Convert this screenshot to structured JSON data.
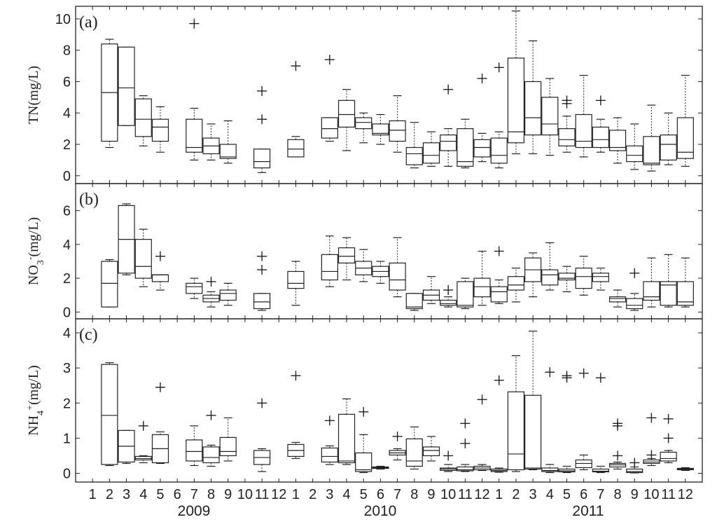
{
  "chart_data": [
    {
      "panel_label": "(a)",
      "type": "box",
      "ylabel_main": "TN",
      "ylabel_unit": "(mg/L)",
      "ylim": [
        -0.5,
        10.8
      ],
      "yticks": [
        0,
        2,
        4,
        6,
        8,
        10
      ],
      "boxes": [
        {
          "month": 2,
          "min": 1.8,
          "q1": 2.2,
          "median": 5.3,
          "q3": 8.4,
          "max": 8.7,
          "outliers": []
        },
        {
          "month": 3,
          "min": 3.2,
          "q1": 3.2,
          "median": 5.6,
          "q3": 8.2,
          "max": 8.2,
          "outliers": []
        },
        {
          "month": 4,
          "min": 1.9,
          "q1": 2.5,
          "median": 3.6,
          "q3": 4.9,
          "max": 5.1,
          "outliers": []
        },
        {
          "month": 5,
          "min": 1.5,
          "q1": 2.2,
          "median": 3.1,
          "q3": 3.6,
          "max": 4.4,
          "outliers": []
        },
        {
          "month": 7,
          "min": 1.0,
          "q1": 1.5,
          "median": 1.8,
          "q3": 3.6,
          "max": 4.3,
          "outliers": [
            9.7
          ]
        },
        {
          "month": 8,
          "min": 1.0,
          "q1": 1.4,
          "median": 1.9,
          "q3": 2.4,
          "max": 3.3,
          "outliers": []
        },
        {
          "month": 9,
          "min": 0.8,
          "q1": 1.1,
          "median": 1.2,
          "q3": 2.0,
          "max": 3.5,
          "outliers": []
        },
        {
          "month": 11,
          "min": 0.2,
          "q1": 0.5,
          "median": 0.9,
          "q3": 1.7,
          "max": 1.7,
          "outliers": [
            3.6,
            5.4
          ]
        },
        {
          "month": 13,
          "min": 1.2,
          "q1": 1.2,
          "median": 1.7,
          "q3": 2.3,
          "max": 2.5,
          "outliers": [
            7.0
          ]
        },
        {
          "month": 15,
          "min": 2.2,
          "q1": 2.4,
          "median": 3.0,
          "q3": 3.7,
          "max": 3.7,
          "outliers": [
            7.4
          ]
        },
        {
          "month": 16,
          "min": 1.6,
          "q1": 3.1,
          "median": 3.9,
          "q3": 4.8,
          "max": 5.5,
          "outliers": []
        },
        {
          "month": 17,
          "min": 2.1,
          "q1": 3.0,
          "median": 3.4,
          "q3": 3.7,
          "max": 4.0,
          "outliers": []
        },
        {
          "month": 18,
          "min": 2.0,
          "q1": 2.6,
          "median": 2.7,
          "q3": 3.3,
          "max": 3.9,
          "outliers": []
        },
        {
          "month": 19,
          "min": 1.5,
          "q1": 2.2,
          "median": 2.9,
          "q3": 3.5,
          "max": 5.1,
          "outliers": []
        },
        {
          "month": 20,
          "min": 0.5,
          "q1": 0.7,
          "median": 1.4,
          "q3": 1.8,
          "max": 3.4,
          "outliers": []
        },
        {
          "month": 21,
          "min": 0.6,
          "q1": 0.8,
          "median": 1.3,
          "q3": 2.1,
          "max": 2.8,
          "outliers": []
        },
        {
          "month": 22,
          "min": 0.6,
          "q1": 1.6,
          "median": 2.2,
          "q3": 2.6,
          "max": 3.0,
          "outliers": [
            5.5
          ]
        },
        {
          "month": 23,
          "min": 0.5,
          "q1": 0.6,
          "median": 0.9,
          "q3": 3.0,
          "max": 3.6,
          "outliers": []
        },
        {
          "month": 24,
          "min": 0.9,
          "q1": 1.2,
          "median": 1.8,
          "q3": 2.3,
          "max": 2.7,
          "outliers": [
            6.2
          ]
        },
        {
          "month": 25,
          "min": 0.5,
          "q1": 0.8,
          "median": 1.3,
          "q3": 2.4,
          "max": 2.8,
          "outliers": [
            6.9
          ]
        },
        {
          "month": 26,
          "min": 1.4,
          "q1": 2.1,
          "median": 2.8,
          "q3": 7.5,
          "max": 10.5,
          "outliers": []
        },
        {
          "month": 27,
          "min": 1.4,
          "q1": 2.6,
          "median": 3.7,
          "q3": 6.0,
          "max": 8.6,
          "outliers": []
        },
        {
          "month": 28,
          "min": 1.3,
          "q1": 2.6,
          "median": 3.3,
          "q3": 5.0,
          "max": 6.2,
          "outliers": []
        },
        {
          "month": 29,
          "min": 1.5,
          "q1": 1.9,
          "median": 2.3,
          "q3": 3.0,
          "max": 3.8,
          "outliers": [
            4.8,
            4.6
          ]
        },
        {
          "month": 30,
          "min": 1.2,
          "q1": 1.8,
          "median": 2.2,
          "q3": 3.9,
          "max": 6.4,
          "outliers": []
        },
        {
          "month": 31,
          "min": 1.5,
          "q1": 1.8,
          "median": 2.3,
          "q3": 3.1,
          "max": 3.6,
          "outliers": [
            4.8
          ]
        },
        {
          "month": 32,
          "min": 0.8,
          "q1": 1.6,
          "median": 1.8,
          "q3": 2.9,
          "max": 3.7,
          "outliers": []
        },
        {
          "month": 33,
          "min": 0.4,
          "q1": 0.9,
          "median": 1.3,
          "q3": 1.9,
          "max": 3.3,
          "outliers": []
        },
        {
          "month": 34,
          "min": 0.3,
          "q1": 0.7,
          "median": 0.8,
          "q3": 2.5,
          "max": 4.5,
          "outliers": []
        },
        {
          "month": 35,
          "min": 0.7,
          "q1": 1.0,
          "median": 2.0,
          "q3": 2.6,
          "max": 4.0,
          "outliers": []
        },
        {
          "month": 36,
          "min": 0.6,
          "q1": 1.1,
          "median": 1.5,
          "q3": 3.7,
          "max": 6.4,
          "outliers": []
        }
      ]
    },
    {
      "panel_label": "(b)",
      "type": "box",
      "ylabel_main": "NO",
      "ylabel_sub": "3",
      "ylabel_sup": "-",
      "ylabel_unit": "(mg/L)",
      "ylim": [
        -0.4,
        7.6
      ],
      "yticks": [
        0,
        2,
        4,
        6
      ],
      "boxes": [
        {
          "month": 2,
          "min": 0.3,
          "q1": 0.3,
          "median": 1.7,
          "q3": 3.0,
          "max": 3.1,
          "outliers": []
        },
        {
          "month": 3,
          "min": 2.2,
          "q1": 2.3,
          "median": 4.3,
          "q3": 6.3,
          "max": 6.4,
          "outliers": []
        },
        {
          "month": 4,
          "min": 1.5,
          "q1": 2.0,
          "median": 2.7,
          "q3": 4.3,
          "max": 4.9,
          "outliers": []
        },
        {
          "month": 5,
          "min": 1.3,
          "q1": 1.8,
          "median": 2.2,
          "q3": 2.2,
          "max": 2.2,
          "outliers": [
            3.3
          ]
        },
        {
          "month": 7,
          "min": 0.8,
          "q1": 1.1,
          "median": 1.5,
          "q3": 1.7,
          "max": 2.0,
          "outliers": []
        },
        {
          "month": 8,
          "min": 0.3,
          "q1": 0.6,
          "median": 0.8,
          "q3": 1.0,
          "max": 1.2,
          "outliers": [
            1.8
          ]
        },
        {
          "month": 9,
          "min": 0.4,
          "q1": 0.7,
          "median": 1.1,
          "q3": 1.3,
          "max": 1.7,
          "outliers": []
        },
        {
          "month": 11,
          "min": 0.1,
          "q1": 0.2,
          "median": 0.6,
          "q3": 1.1,
          "max": 1.1,
          "outliers": [
            2.5,
            3.3
          ]
        },
        {
          "month": 13,
          "min": 0.4,
          "q1": 1.4,
          "median": 1.7,
          "q3": 2.4,
          "max": 3.0,
          "outliers": []
        },
        {
          "month": 15,
          "min": 1.5,
          "q1": 1.9,
          "median": 2.4,
          "q3": 3.4,
          "max": 4.5,
          "outliers": []
        },
        {
          "month": 16,
          "min": 1.9,
          "q1": 2.9,
          "median": 3.3,
          "q3": 3.8,
          "max": 4.4,
          "outliers": []
        },
        {
          "month": 17,
          "min": 1.8,
          "q1": 2.2,
          "median": 2.6,
          "q3": 3.0,
          "max": 3.7,
          "outliers": []
        },
        {
          "month": 18,
          "min": 1.7,
          "q1": 2.1,
          "median": 2.4,
          "q3": 2.7,
          "max": 3.0,
          "outliers": []
        },
        {
          "month": 19,
          "min": 0.9,
          "q1": 1.3,
          "median": 1.9,
          "q3": 2.9,
          "max": 4.4,
          "outliers": []
        },
        {
          "month": 20,
          "min": 0.1,
          "q1": 0.2,
          "median": 0.3,
          "q3": 1.1,
          "max": 1.1,
          "outliers": []
        },
        {
          "month": 21,
          "min": 0.5,
          "q1": 0.7,
          "median": 1.0,
          "q3": 1.3,
          "max": 2.1,
          "outliers": []
        },
        {
          "month": 22,
          "min": 0.3,
          "q1": 0.4,
          "median": 0.5,
          "q3": 0.7,
          "max": 0.9,
          "outliers": [
            1.3
          ]
        },
        {
          "month": 23,
          "min": 0.2,
          "q1": 0.3,
          "median": 0.4,
          "q3": 1.8,
          "max": 2.0,
          "outliers": []
        },
        {
          "month": 24,
          "min": 0.4,
          "q1": 0.9,
          "median": 1.5,
          "q3": 2.0,
          "max": 3.6,
          "outliers": []
        },
        {
          "month": 25,
          "min": 0.5,
          "q1": 0.6,
          "median": 1.2,
          "q3": 1.5,
          "max": 1.9,
          "outliers": [
            3.6
          ]
        },
        {
          "month": 26,
          "min": 0.6,
          "q1": 1.3,
          "median": 1.6,
          "q3": 2.1,
          "max": 2.6,
          "outliers": []
        },
        {
          "month": 27,
          "min": 0.9,
          "q1": 1.8,
          "median": 2.5,
          "q3": 3.2,
          "max": 3.5,
          "outliers": []
        },
        {
          "month": 28,
          "min": 1.3,
          "q1": 1.6,
          "median": 2.2,
          "q3": 2.5,
          "max": 4.1,
          "outliers": []
        },
        {
          "month": 29,
          "min": 1.2,
          "q1": 1.9,
          "median": 2.0,
          "q3": 2.3,
          "max": 2.7,
          "outliers": []
        },
        {
          "month": 30,
          "min": 1.0,
          "q1": 1.4,
          "median": 2.1,
          "q3": 2.6,
          "max": 3.3,
          "outliers": []
        },
        {
          "month": 31,
          "min": 1.3,
          "q1": 1.8,
          "median": 2.1,
          "q3": 2.3,
          "max": 2.6,
          "outliers": []
        },
        {
          "month": 32,
          "min": 0.3,
          "q1": 0.6,
          "median": 0.8,
          "q3": 0.9,
          "max": 1.3,
          "outliers": []
        },
        {
          "month": 33,
          "min": 0.1,
          "q1": 0.2,
          "median": 0.4,
          "q3": 0.8,
          "max": 1.1,
          "outliers": [
            2.3
          ]
        },
        {
          "month": 34,
          "min": 0.3,
          "q1": 0.7,
          "median": 0.9,
          "q3": 1.8,
          "max": 3.2,
          "outliers": []
        },
        {
          "month": 35,
          "min": 0.3,
          "q1": 0.4,
          "median": 1.6,
          "q3": 1.8,
          "max": 3.4,
          "outliers": []
        },
        {
          "month": 36,
          "min": 0.3,
          "q1": 0.4,
          "median": 0.6,
          "q3": 1.8,
          "max": 3.2,
          "outliers": []
        }
      ]
    },
    {
      "panel_label": "(c)",
      "type": "box",
      "ylabel_main": "NH",
      "ylabel_sub": "4",
      "ylabel_sup": "+",
      "ylabel_unit": "(mg/L)",
      "ylim": [
        -0.25,
        4.4
      ],
      "yticks": [
        0,
        1,
        2,
        3,
        4
      ],
      "boxes": [
        {
          "month": 2,
          "min": 0.22,
          "q1": 0.25,
          "median": 1.65,
          "q3": 3.1,
          "max": 3.15,
          "outliers": []
        },
        {
          "month": 3,
          "min": 0.28,
          "q1": 0.32,
          "median": 0.77,
          "q3": 1.22,
          "max": 1.22,
          "outliers": []
        },
        {
          "month": 4,
          "min": 0.3,
          "q1": 0.38,
          "median": 0.42,
          "q3": 0.48,
          "max": 0.5,
          "outliers": [
            1.35
          ]
        },
        {
          "month": 5,
          "min": 0.28,
          "q1": 0.3,
          "median": 0.7,
          "q3": 1.1,
          "max": 1.18,
          "outliers": [
            2.45
          ]
        },
        {
          "month": 7,
          "min": 0.22,
          "q1": 0.35,
          "median": 0.62,
          "q3": 0.95,
          "max": 1.35,
          "outliers": []
        },
        {
          "month": 8,
          "min": 0.2,
          "q1": 0.3,
          "median": 0.45,
          "q3": 0.75,
          "max": 0.8,
          "outliers": [
            1.65
          ]
        },
        {
          "month": 9,
          "min": 0.35,
          "q1": 0.5,
          "median": 0.62,
          "q3": 1.02,
          "max": 1.58,
          "outliers": []
        },
        {
          "month": 11,
          "min": 0.05,
          "q1": 0.25,
          "median": 0.45,
          "q3": 0.65,
          "max": 0.7,
          "outliers": [
            2.0
          ]
        },
        {
          "month": 13,
          "min": 0.42,
          "q1": 0.48,
          "median": 0.65,
          "q3": 0.82,
          "max": 0.88,
          "outliers": [
            2.78
          ]
        },
        {
          "month": 15,
          "min": 0.25,
          "q1": 0.32,
          "median": 0.48,
          "q3": 0.72,
          "max": 0.78,
          "outliers": [
            1.5
          ]
        },
        {
          "month": 16,
          "min": 0.25,
          "q1": 0.3,
          "median": 0.35,
          "q3": 1.68,
          "max": 2.12,
          "outliers": []
        },
        {
          "month": 17,
          "min": 0.02,
          "q1": 0.05,
          "median": 0.1,
          "q3": 0.58,
          "max": 1.1,
          "outliers": [
            1.75
          ]
        },
        {
          "month": 18,
          "min": 0.12,
          "q1": 0.14,
          "median": 0.16,
          "q3": 0.18,
          "max": 0.2,
          "outliers": []
        },
        {
          "month": 19,
          "min": 0.38,
          "q1": 0.52,
          "median": 0.58,
          "q3": 0.65,
          "max": 0.7,
          "outliers": [
            1.05
          ]
        },
        {
          "month": 20,
          "min": 0.12,
          "q1": 0.2,
          "median": 0.35,
          "q3": 0.98,
          "max": 1.32,
          "outliers": []
        },
        {
          "month": 21,
          "min": 0.35,
          "q1": 0.5,
          "median": 0.65,
          "q3": 0.75,
          "max": 1.05,
          "outliers": []
        },
        {
          "month": 22,
          "min": 0.05,
          "q1": 0.08,
          "median": 0.12,
          "q3": 0.15,
          "max": 0.25,
          "outliers": [
            0.5
          ]
        },
        {
          "month": 23,
          "min": 0.05,
          "q1": 0.07,
          "median": 0.1,
          "q3": 0.18,
          "max": 0.25,
          "outliers": [
            0.85,
            1.42
          ]
        },
        {
          "month": 24,
          "min": 0.08,
          "q1": 0.1,
          "median": 0.15,
          "q3": 0.2,
          "max": 0.25,
          "outliers": [
            2.1
          ]
        },
        {
          "month": 25,
          "min": 0.03,
          "q1": 0.05,
          "median": 0.08,
          "q3": 0.12,
          "max": 0.15,
          "outliers": [
            2.65
          ]
        },
        {
          "month": 26,
          "min": 0.05,
          "q1": 0.1,
          "median": 0.55,
          "q3": 2.32,
          "max": 3.35,
          "outliers": []
        },
        {
          "month": 27,
          "min": 0.1,
          "q1": 0.12,
          "median": 0.15,
          "q3": 2.22,
          "max": 4.05,
          "outliers": []
        },
        {
          "month": 28,
          "min": 0.02,
          "q1": 0.05,
          "median": 0.08,
          "q3": 0.15,
          "max": 0.25,
          "outliers": [
            2.88
          ]
        },
        {
          "month": 29,
          "min": 0.02,
          "q1": 0.04,
          "median": 0.07,
          "q3": 0.12,
          "max": 0.2,
          "outliers": [
            2.72,
            2.78
          ]
        },
        {
          "month": 30,
          "min": 0.1,
          "q1": 0.16,
          "median": 0.28,
          "q3": 0.38,
          "max": 0.52,
          "outliers": [
            2.85
          ]
        },
        {
          "month": 31,
          "min": 0.02,
          "q1": 0.04,
          "median": 0.06,
          "q3": 0.12,
          "max": 0.2,
          "outliers": [
            2.72
          ]
        },
        {
          "month": 32,
          "min": 0.12,
          "q1": 0.18,
          "median": 0.24,
          "q3": 0.28,
          "max": 0.32,
          "outliers": [
            0.5,
            1.35,
            1.42
          ]
        },
        {
          "month": 33,
          "min": 0.01,
          "q1": 0.02,
          "median": 0.05,
          "q3": 0.12,
          "max": 0.18,
          "outliers": [
            0.3
          ]
        },
        {
          "month": 34,
          "min": 0.22,
          "q1": 0.28,
          "median": 0.32,
          "q3": 0.38,
          "max": 0.42,
          "outliers": [
            0.52,
            1.58
          ]
        },
        {
          "month": 35,
          "min": 0.3,
          "q1": 0.35,
          "median": 0.42,
          "q3": 0.6,
          "max": 0.65,
          "outliers": [
            1.0,
            1.55
          ]
        },
        {
          "month": 36,
          "min": 0.08,
          "q1": 0.1,
          "median": 0.12,
          "q3": 0.14,
          "max": 0.16,
          "outliers": []
        }
      ]
    }
  ],
  "x_axis": {
    "tick_labels": [
      "1",
      "2",
      "3",
      "4",
      "5",
      "6",
      "7",
      "8",
      "9",
      "10",
      "11",
      "12",
      "1",
      "2",
      "3",
      "4",
      "5",
      "6",
      "7",
      "8",
      "9",
      "10",
      "11",
      "12",
      "1",
      "2",
      "3",
      "4",
      "5",
      "6",
      "7",
      "8",
      "9",
      "10",
      "11",
      "12"
    ],
    "year_labels": [
      "2009",
      "2010",
      "2011"
    ]
  }
}
